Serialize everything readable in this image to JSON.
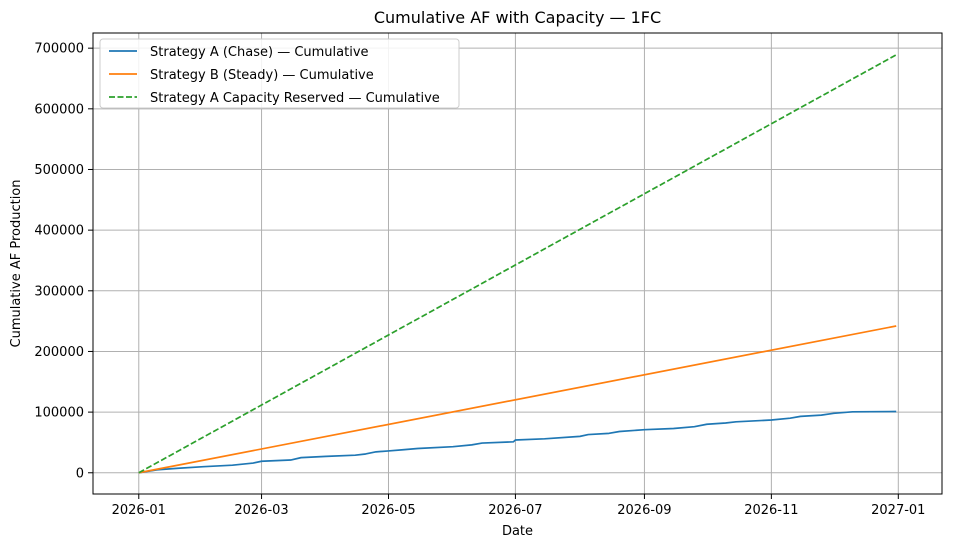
{
  "chart_data": {
    "type": "line",
    "title": "Cumulative AF with Capacity — 1FC",
    "xlabel": "Date",
    "ylabel": "Cumulative AF Production",
    "x_tick_labels": [
      "2026-01",
      "2026-03",
      "2026-05",
      "2026-07",
      "2026-09",
      "2026-11",
      "2027-01"
    ],
    "y_ticks": [
      0,
      100000,
      200000,
      300000,
      400000,
      500000,
      600000,
      700000
    ],
    "xlim": [
      "2025-12-10",
      "2027-01-22"
    ],
    "ylim": [
      -35000,
      725000
    ],
    "grid": true,
    "legend_position": "top-left",
    "series": [
      {
        "name": "Strategy A (Chase) — Cumulative",
        "color": "#1f77b4",
        "dash": "solid",
        "points": [
          [
            "2026-01-01",
            0
          ],
          [
            "2026-01-10",
            5000
          ],
          [
            "2026-01-20",
            7500
          ],
          [
            "2026-02-01",
            10000
          ],
          [
            "2026-02-15",
            12500
          ],
          [
            "2026-02-25",
            16000
          ],
          [
            "2026-03-01",
            19000
          ],
          [
            "2026-03-15",
            21000
          ],
          [
            "2026-03-20",
            25000
          ],
          [
            "2026-04-01",
            27000
          ],
          [
            "2026-04-15",
            29000
          ],
          [
            "2026-04-20",
            31000
          ],
          [
            "2026-04-25",
            34500
          ],
          [
            "2026-05-01",
            36000
          ],
          [
            "2026-05-08",
            38000
          ],
          [
            "2026-05-15",
            40000
          ],
          [
            "2026-06-01",
            43000
          ],
          [
            "2026-06-10",
            46000
          ],
          [
            "2026-06-15",
            49000
          ],
          [
            "2026-06-30",
            51000
          ],
          [
            "2026-07-01",
            54000
          ],
          [
            "2026-07-15",
            56000
          ],
          [
            "2026-08-01",
            60000
          ],
          [
            "2026-08-05",
            63000
          ],
          [
            "2026-08-15",
            65000
          ],
          [
            "2026-08-20",
            68000
          ],
          [
            "2026-09-01",
            71000
          ],
          [
            "2026-09-15",
            73000
          ],
          [
            "2026-09-25",
            76000
          ],
          [
            "2026-10-01",
            80000
          ],
          [
            "2026-10-10",
            82000
          ],
          [
            "2026-10-15",
            84000
          ],
          [
            "2026-11-01",
            87000
          ],
          [
            "2026-11-10",
            90000
          ],
          [
            "2026-11-15",
            93000
          ],
          [
            "2026-11-25",
            95000
          ],
          [
            "2026-12-01",
            98000
          ],
          [
            "2026-12-10",
            100500
          ],
          [
            "2026-12-31",
            101000
          ]
        ]
      },
      {
        "name": "Strategy B (Steady) — Cumulative",
        "color": "#ff7f0e",
        "dash": "solid",
        "points": [
          [
            "2026-01-01",
            0
          ],
          [
            "2026-12-31",
            242000
          ]
        ]
      },
      {
        "name": "Strategy A Capacity Reserved — Cumulative",
        "color": "#2ca02c",
        "dash": "dashed",
        "points": [
          [
            "2026-01-01",
            0
          ],
          [
            "2026-12-31",
            689000
          ]
        ]
      }
    ]
  }
}
